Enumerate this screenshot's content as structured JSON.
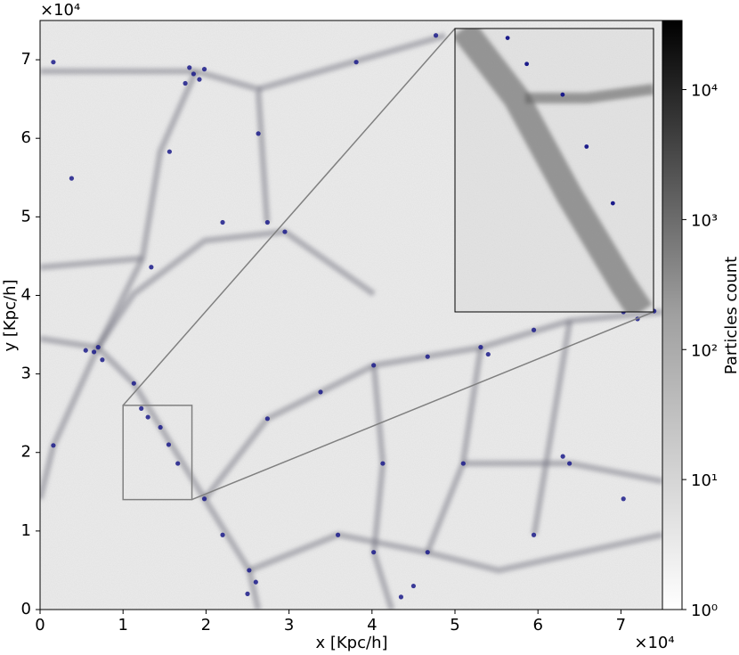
{
  "chart_data": {
    "type": "scatter",
    "xlabel": "x [Kpc/h]",
    "ylabel": "y [Kpc/h]",
    "x_offset_label": "×10⁴",
    "y_offset_label": "×10⁴",
    "xlim": [
      0,
      75000
    ],
    "ylim": [
      0,
      75000
    ],
    "xticks": [
      {
        "value": 0,
        "label": "0"
      },
      {
        "value": 10000,
        "label": "1"
      },
      {
        "value": 20000,
        "label": "2"
      },
      {
        "value": 30000,
        "label": "3"
      },
      {
        "value": 40000,
        "label": "4"
      },
      {
        "value": 50000,
        "label": "5"
      },
      {
        "value": 60000,
        "label": "6"
      },
      {
        "value": 70000,
        "label": "7"
      }
    ],
    "yticks": [
      {
        "value": 0,
        "label": "0"
      },
      {
        "value": 10000,
        "label": "1"
      },
      {
        "value": 20000,
        "label": "2"
      },
      {
        "value": 30000,
        "label": "3"
      },
      {
        "value": 40000,
        "label": "4"
      },
      {
        "value": 50000,
        "label": "5"
      },
      {
        "value": 60000,
        "label": "6"
      },
      {
        "value": 70000,
        "label": "7"
      }
    ],
    "colorbar": {
      "label": "Particles count",
      "colormap": "Greys",
      "log": true,
      "lim": [
        1,
        34000
      ],
      "ticks": [
        {
          "value": 1,
          "label": "10⁰"
        },
        {
          "value": 10,
          "label": "10¹"
        },
        {
          "value": 100,
          "label": "10²"
        },
        {
          "value": 1000,
          "label": "10³"
        },
        {
          "value": 10000,
          "label": "10⁴"
        }
      ]
    },
    "inset": {
      "xlim": [
        10000,
        18300
      ],
      "ylim": [
        14000,
        26000
      ]
    },
    "series": [
      {
        "color": "#1b1b8a",
        "x": [
          18500,
          19200,
          18000,
          19800,
          17500,
          7000,
          6500,
          7500,
          5500,
          11300,
          14500,
          16600,
          19800,
          22000,
          25200,
          26000,
          25000,
          29500,
          22000,
          13400,
          27400,
          33800,
          40200,
          46700,
          53100,
          54000,
          59500,
          70300,
          72000,
          74000,
          41300,
          40200,
          43500,
          45000,
          51000,
          63800,
          63000,
          46700,
          59500,
          26300,
          27400,
          15600,
          38100,
          47700,
          1600,
          3800,
          1600,
          35900,
          70300,
          13000,
          15500,
          12200
        ],
        "y": [
          68200,
          67500,
          69000,
          68800,
          67000,
          33400,
          32800,
          31800,
          33000,
          28800,
          23200,
          18600,
          14100,
          9500,
          5000,
          3500,
          2000,
          48100,
          49300,
          43600,
          24300,
          27700,
          31100,
          32200,
          33400,
          32500,
          35600,
          37900,
          37000,
          38000,
          18600,
          7300,
          1600,
          3000,
          18600,
          18600,
          19500,
          7300,
          9500,
          60600,
          49300,
          58300,
          69700,
          73100,
          20900,
          54900,
          69700,
          9500,
          14100,
          24500,
          21000,
          25600
        ]
      }
    ]
  }
}
